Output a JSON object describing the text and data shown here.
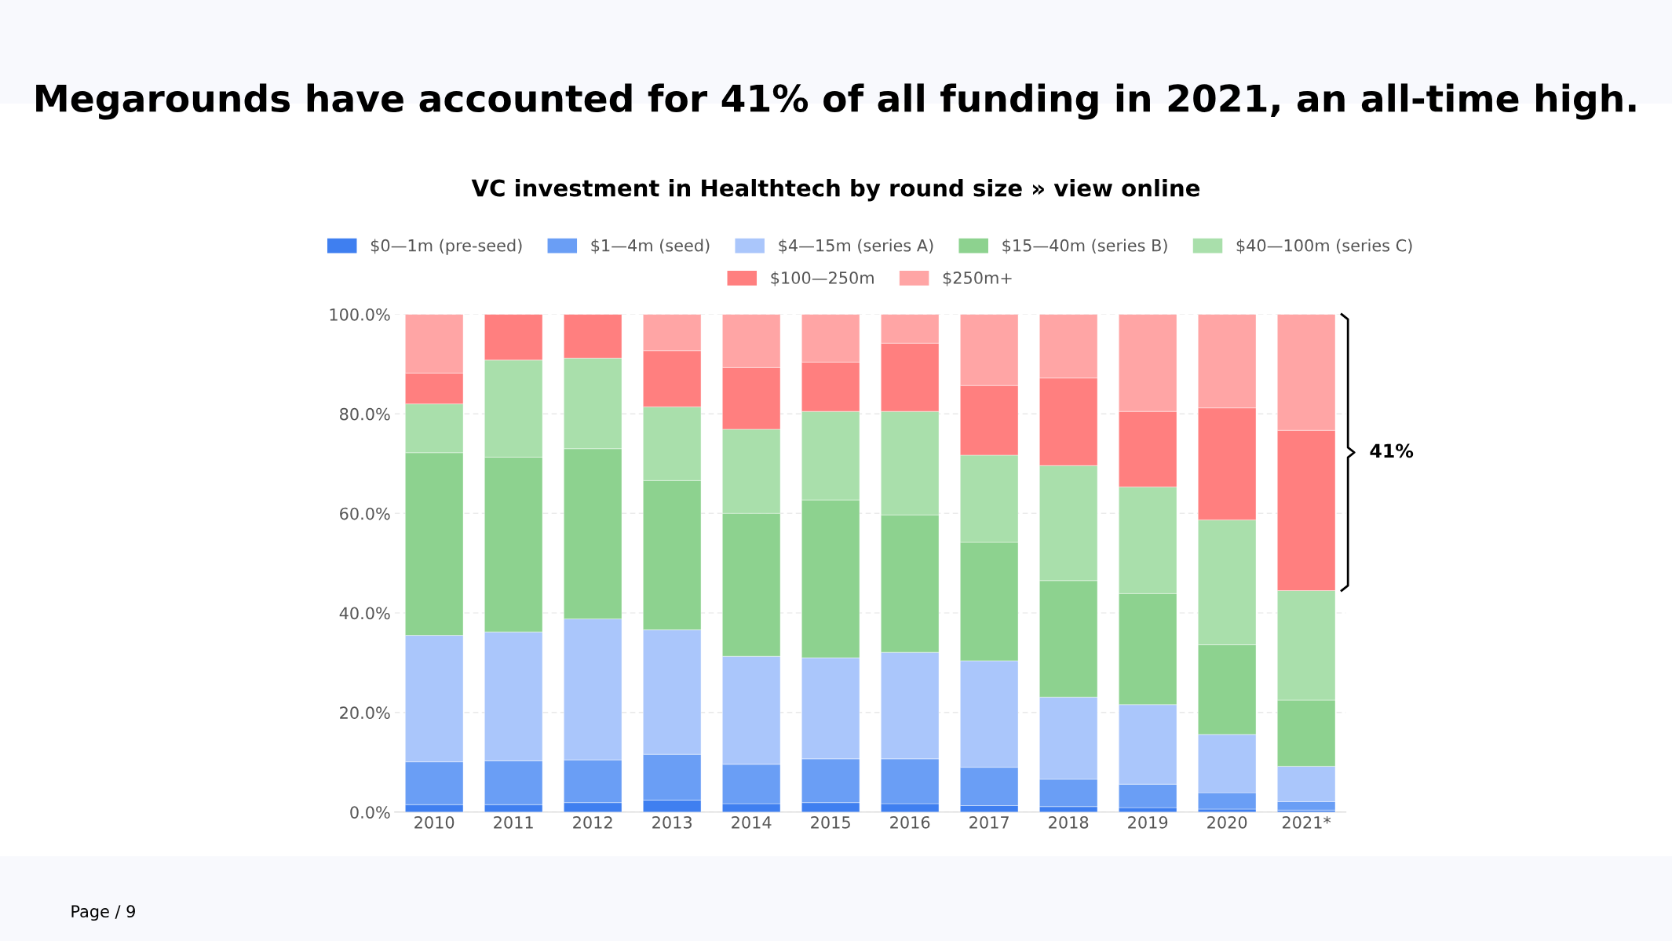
{
  "chart_data": {
    "type": "bar",
    "stacked": true,
    "title": "Megarounds have accounted for 41% of all funding in 2021, an all-time high.",
    "subtitle": "VC investment in Healthtech by round size » view online",
    "categories": [
      "2010",
      "2011",
      "2012",
      "2013",
      "2014",
      "2015",
      "2016",
      "2017",
      "2018",
      "2019",
      "2020",
      "2021*"
    ],
    "series": [
      {
        "name": "$0—1m (pre-seed)",
        "color": "#3f7ff0",
        "values": [
          1.5,
          1.5,
          1.9,
          2.4,
          1.7,
          1.9,
          1.7,
          1.3,
          1.1,
          0.9,
          0.6,
          0.4
        ]
      },
      {
        "name": "$1—4m (seed)",
        "color": "#6a9ef5",
        "values": [
          8.6,
          8.8,
          8.6,
          9.2,
          7.9,
          8.8,
          9.0,
          7.7,
          5.5,
          4.7,
          3.3,
          1.7
        ]
      },
      {
        "name": "$4—15m (series A)",
        "color": "#aac6fb",
        "values": [
          25.4,
          25.9,
          28.3,
          25.0,
          21.7,
          20.3,
          21.4,
          21.4,
          16.5,
          16.0,
          11.7,
          7.1
        ]
      },
      {
        "name": "$15—40m (series B)",
        "color": "#8dd28f",
        "values": [
          36.7,
          35.1,
          34.2,
          30.0,
          28.7,
          31.7,
          27.6,
          23.8,
          23.4,
          22.3,
          18.0,
          13.3
        ]
      },
      {
        "name": "$40—100m (series C)",
        "color": "#a9dfab",
        "values": [
          9.8,
          19.5,
          18.2,
          14.8,
          16.9,
          17.8,
          20.8,
          17.5,
          23.1,
          21.4,
          25.1,
          22.0
        ]
      },
      {
        "name": "$100—250m",
        "color": "#ff7f7f",
        "values": [
          6.2,
          9.2,
          8.8,
          11.3,
          12.4,
          9.9,
          13.7,
          14.0,
          17.6,
          15.2,
          22.5,
          32.2
        ]
      },
      {
        "name": "$250m+",
        "color": "#ffa5a5",
        "values": [
          11.8,
          null,
          null,
          7.3,
          10.7,
          9.6,
          5.8,
          14.3,
          12.8,
          19.5,
          18.8,
          23.3
        ]
      }
    ],
    "ylim": [
      0,
      100
    ],
    "yticks": [
      {
        "value": 0,
        "label": "0.0%"
      },
      {
        "value": 20,
        "label": "20.0%"
      },
      {
        "value": 40,
        "label": "40.0%"
      },
      {
        "value": 60,
        "label": "60.0%"
      },
      {
        "value": 80,
        "label": "80.0%"
      },
      {
        "value": 100,
        "label": "100.0%"
      }
    ],
    "grid": "y",
    "legend": "top",
    "annotations": [
      "41%",
      "Page / 9"
    ]
  }
}
